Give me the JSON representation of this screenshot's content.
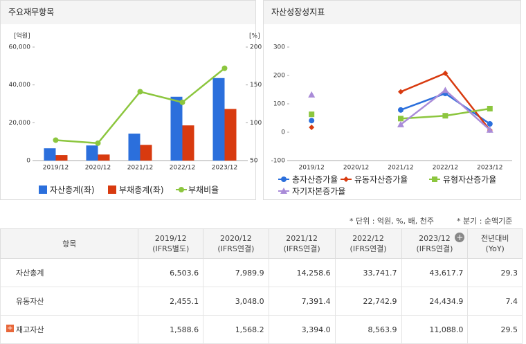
{
  "chart_data": [
    {
      "type": "bar",
      "title": "주요재무항목",
      "ylabel": "[억원]",
      "y2label": "[%]",
      "categories": [
        "2019/12",
        "2020/12",
        "2021/12",
        "2022/12",
        "2023/12"
      ],
      "ylim": [
        0,
        60000
      ],
      "yticks": [
        0,
        {
          "value": 20000,
          "label": "20,000"
        },
        {
          "value": 40000,
          "label": "40,000"
        },
        {
          "value": 60000,
          "label": "60,000"
        }
      ],
      "y2lim": [
        50,
        200
      ],
      "y2ticks": [
        50,
        100,
        150,
        200
      ],
      "series": [
        {
          "name": "자산총계(좌)",
          "type": "bar",
          "color": "#2b6fdc",
          "values": [
            6503.6,
            7989.9,
            14258.6,
            33741.7,
            43617.7
          ]
        },
        {
          "name": "부채총계(좌)",
          "type": "bar",
          "color": "#d83a0f",
          "values": [
            2900,
            3200,
            8300,
            18600,
            27300
          ]
        },
        {
          "name": "부채비율",
          "type": "line",
          "axis": "y2",
          "color": "#8cc63e",
          "values": [
            77,
            73,
            141,
            127,
            172
          ]
        }
      ]
    },
    {
      "type": "line",
      "title": "자산성장성지표",
      "categories": [
        "2019/12",
        "2020/12",
        "2021/12",
        "2022/12",
        "2023/12"
      ],
      "ylim": [
        -100,
        300
      ],
      "yticks": [
        -100,
        0,
        100,
        200,
        300
      ],
      "series": [
        {
          "name": "총자산증가율",
          "color": "#2b6fdc",
          "marker": "circle",
          "values": [
            41,
            null,
            78.5,
            136.6,
            29.3
          ]
        },
        {
          "name": "유동자산증가율",
          "color": "#d83a0f",
          "marker": "diamond",
          "values": [
            17,
            null,
            142.5,
            207.7,
            7.4
          ]
        },
        {
          "name": "유형자산증가율",
          "color": "#8cc63e",
          "marker": "square",
          "values": [
            63,
            null,
            48,
            58,
            83
          ]
        },
        {
          "name": "자기자본증가율",
          "color": "#a98bd8",
          "marker": "triangle",
          "values": [
            132,
            null,
            27,
            148,
            8
          ]
        }
      ]
    }
  ],
  "notes": [
    "* 단위 : 억원, %, 배, 천주",
    "* 분기 : 순액기준"
  ],
  "table": {
    "header": [
      [
        "항목"
      ],
      [
        "2019/12",
        "(IFRS별도)"
      ],
      [
        "2020/12",
        "(IFRS연결)"
      ],
      [
        "2021/12",
        "(IFRS연결)"
      ],
      [
        "2022/12",
        "(IFRS연결)"
      ],
      [
        "2023/12",
        "(IFRS연결)"
      ],
      [
        "전년대비",
        "(YoY)"
      ]
    ],
    "rows": [
      [
        "자산총계",
        "6,503.6",
        "7,989.9",
        "14,258.6",
        "33,741.7",
        "43,617.7",
        "29.3"
      ],
      [
        "유동자산",
        "2,455.1",
        "3,048.0",
        "7,391.4",
        "22,742.9",
        "24,434.9",
        "7.4"
      ],
      [
        "재고자산",
        "1,588.6",
        "1,568.2",
        "3,394.0",
        "8,563.9",
        "11,088.0",
        "29.5"
      ]
    ]
  }
}
